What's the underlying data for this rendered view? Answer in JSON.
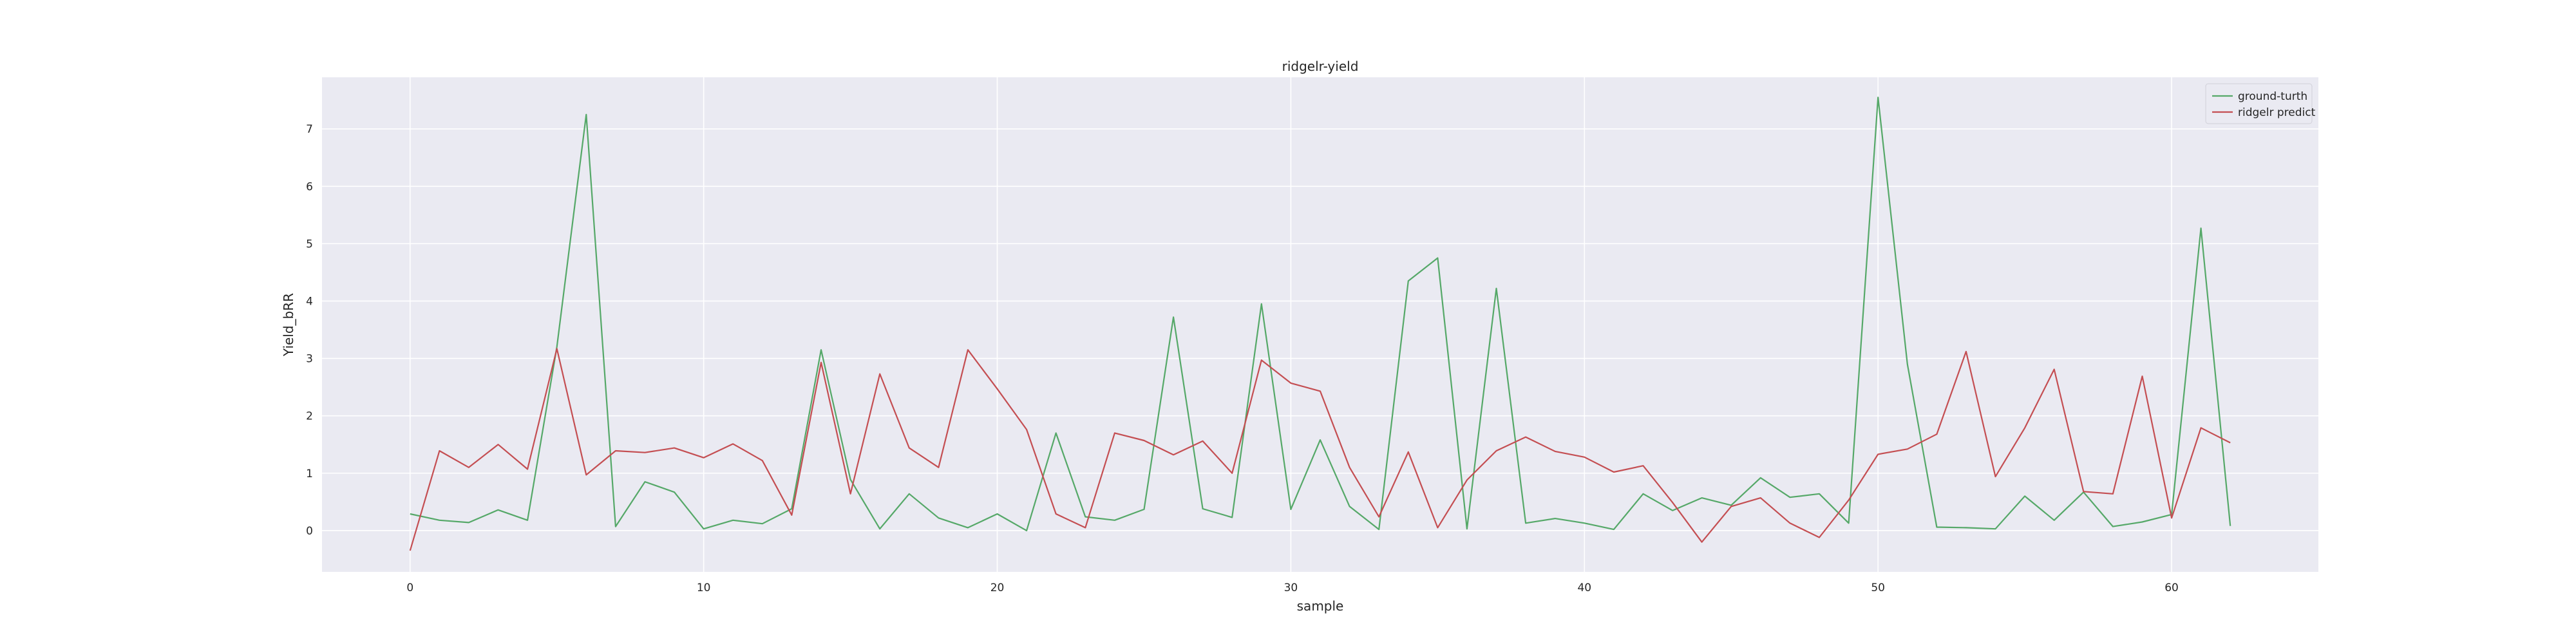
{
  "chart_data": {
    "type": "line",
    "title": "ridgelr-yield",
    "xlabel": "sample",
    "ylabel": "Yield_bRR",
    "xlim": [
      -3,
      65
    ],
    "ylim": [
      -0.72,
      7.9
    ],
    "xticks": [
      0,
      10,
      20,
      30,
      40,
      50,
      60
    ],
    "yticks": [
      0,
      1,
      2,
      3,
      4,
      5,
      6,
      7
    ],
    "grid": true,
    "legend_position": "top-right",
    "x": [
      0,
      1,
      2,
      3,
      4,
      5,
      6,
      7,
      8,
      9,
      10,
      11,
      12,
      13,
      14,
      15,
      16,
      17,
      18,
      19,
      20,
      21,
      22,
      23,
      24,
      25,
      26,
      27,
      28,
      29,
      30,
      31,
      32,
      33,
      34,
      35,
      36,
      37,
      38,
      39,
      40,
      41,
      42,
      43,
      44,
      45,
      46,
      47,
      48,
      49,
      50,
      51,
      52,
      53,
      54,
      55,
      56,
      57,
      58,
      59,
      60,
      61,
      62
    ],
    "series": [
      {
        "name": "ground-turth",
        "color": "#55a868",
        "values": [
          0.29,
          0.18,
          0.14,
          0.36,
          0.18,
          3.2,
          7.25,
          0.07,
          0.85,
          0.67,
          0.03,
          0.18,
          0.12,
          0.38,
          3.15,
          0.89,
          0.03,
          0.64,
          0.22,
          0.05,
          0.29,
          0.0,
          1.7,
          0.24,
          0.18,
          0.37,
          3.72,
          0.38,
          0.23,
          3.95,
          0.37,
          1.58,
          0.42,
          0.02,
          4.35,
          4.75,
          0.03,
          4.22,
          0.13,
          0.21,
          0.13,
          0.02,
          0.64,
          0.35,
          0.57,
          0.44,
          0.92,
          0.58,
          0.64,
          0.13,
          7.55,
          2.9,
          0.06,
          0.05,
          0.03,
          0.6,
          0.18,
          0.67,
          0.07,
          0.15,
          0.28,
          5.27,
          0.08
        ]
      },
      {
        "name": "ridgelr predict",
        "color": "#c44e52",
        "values": [
          -0.35,
          1.39,
          1.1,
          1.5,
          1.07,
          3.17,
          0.97,
          1.39,
          1.36,
          1.44,
          1.27,
          1.51,
          1.22,
          0.27,
          2.93,
          0.64,
          2.73,
          1.44,
          1.1,
          3.15,
          2.47,
          1.76,
          0.29,
          0.05,
          1.7,
          1.57,
          1.32,
          1.56,
          1.0,
          2.97,
          2.57,
          2.43,
          1.1,
          0.24,
          1.37,
          0.05,
          0.88,
          1.39,
          1.63,
          1.38,
          1.28,
          1.02,
          1.13,
          0.49,
          -0.2,
          0.42,
          0.57,
          0.13,
          -0.12,
          0.53,
          1.33,
          1.42,
          1.68,
          3.12,
          0.94,
          1.79,
          2.81,
          0.68,
          0.64,
          2.69,
          0.22,
          1.79,
          1.53
        ]
      }
    ]
  }
}
